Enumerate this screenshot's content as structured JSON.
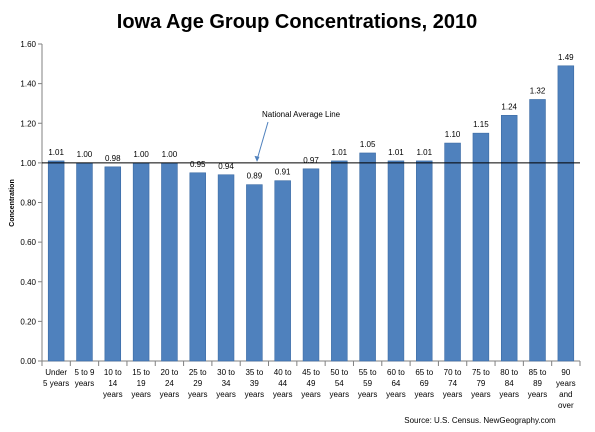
{
  "chart_data": {
    "type": "bar",
    "title": "Iowa Age Group Concentrations, 2010",
    "ylabel": "Concentration",
    "xlabel": "",
    "ylim": [
      0,
      1.6
    ],
    "yticks": [
      "0.00",
      "0.20",
      "0.40",
      "0.60",
      "0.80",
      "1.00",
      "1.20",
      "1.40",
      "1.60"
    ],
    "grid": false,
    "categories": [
      [
        "Under",
        "5 years"
      ],
      [
        "5 to 9",
        "years"
      ],
      [
        "10 to",
        "14",
        "years"
      ],
      [
        "15 to",
        "19",
        "years"
      ],
      [
        "20 to",
        "24",
        "years"
      ],
      [
        "25 to",
        "29",
        "years"
      ],
      [
        "30 to",
        "34",
        "years"
      ],
      [
        "35 to",
        "39",
        "years"
      ],
      [
        "40 to",
        "44",
        "years"
      ],
      [
        "45 to",
        "49",
        "years"
      ],
      [
        "50 to",
        "54",
        "years"
      ],
      [
        "55 to",
        "59",
        "years"
      ],
      [
        "60 to",
        "64",
        "years"
      ],
      [
        "65 to",
        "69",
        "years"
      ],
      [
        "70 to",
        "74",
        "years"
      ],
      [
        "75 to",
        "79",
        "years"
      ],
      [
        "80 to",
        "84",
        "years"
      ],
      [
        "85 to",
        "89",
        "years"
      ],
      [
        "90",
        "years",
        "and",
        "over"
      ]
    ],
    "values": [
      1.01,
      1.0,
      0.98,
      1.0,
      1.0,
      0.95,
      0.94,
      0.89,
      0.91,
      0.97,
      1.01,
      1.05,
      1.01,
      1.01,
      1.1,
      1.15,
      1.24,
      1.32,
      1.49
    ],
    "value_labels": [
      "1.01",
      "1.00",
      "0.98",
      "1.00",
      "1.00",
      "0.95",
      "0.94",
      "0.89",
      "0.91",
      "0.97",
      "1.01",
      "1.05",
      "1.01",
      "1.01",
      "1.10",
      "1.15",
      "1.24",
      "1.32",
      "1.49"
    ],
    "reference_line": {
      "value": 1.0,
      "label": "National Average Line"
    },
    "source": "Source: U.S. Census.  NewGeography.com",
    "bar_color": "#4f81bd",
    "bar_edge_color": "#3a6aa3"
  }
}
